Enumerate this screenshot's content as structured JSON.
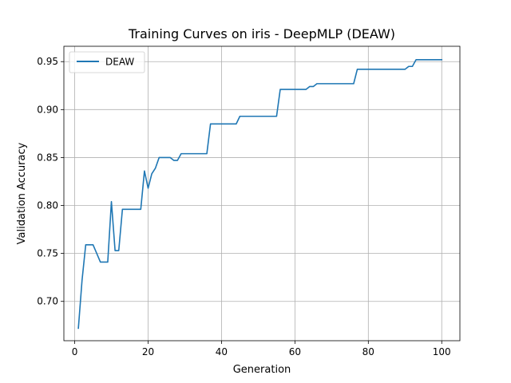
{
  "chart_data": {
    "type": "line",
    "title": "Training Curves on iris - DeepMLP (DEAW)",
    "xlabel": "Generation",
    "ylabel": "Validation Accuracy",
    "xlim": [
      -2.95,
      104.95
    ],
    "ylim": [
      0.659,
      0.966
    ],
    "xticks": [
      0,
      20,
      40,
      60,
      80,
      100
    ],
    "yticks": [
      0.7,
      0.75,
      0.8,
      0.85,
      0.9,
      0.95
    ],
    "xtick_labels": [
      "0",
      "20",
      "40",
      "60",
      "80",
      "100"
    ],
    "ytick_labels": [
      "0.70",
      "0.75",
      "0.80",
      "0.85",
      "0.90",
      "0.95"
    ],
    "grid": true,
    "legend_position": "upper-left",
    "colors": {
      "series": "#1f77b4"
    },
    "series": [
      {
        "name": "DEAW",
        "x": [
          1,
          2,
          3,
          4,
          5,
          6,
          7,
          8,
          9,
          10,
          11,
          12,
          13,
          14,
          15,
          16,
          17,
          18,
          19,
          20,
          21,
          22,
          23,
          24,
          25,
          26,
          27,
          28,
          29,
          30,
          31,
          32,
          33,
          34,
          35,
          36,
          37,
          38,
          39,
          40,
          41,
          42,
          43,
          44,
          45,
          46,
          47,
          48,
          49,
          50,
          51,
          52,
          53,
          54,
          55,
          56,
          57,
          58,
          59,
          60,
          61,
          62,
          63,
          64,
          65,
          66,
          67,
          68,
          69,
          70,
          71,
          72,
          73,
          74,
          75,
          76,
          77,
          78,
          79,
          80,
          81,
          82,
          83,
          84,
          85,
          86,
          87,
          88,
          89,
          90,
          91,
          92,
          93,
          94,
          95,
          96,
          97,
          98,
          99,
          100
        ],
        "values": [
          0.672,
          0.722,
          0.759,
          0.759,
          0.759,
          0.75,
          0.741,
          0.741,
          0.741,
          0.804,
          0.753,
          0.753,
          0.796,
          0.796,
          0.796,
          0.796,
          0.796,
          0.796,
          0.836,
          0.818,
          0.833,
          0.839,
          0.85,
          0.85,
          0.85,
          0.85,
          0.847,
          0.847,
          0.854,
          0.854,
          0.854,
          0.854,
          0.854,
          0.854,
          0.854,
          0.854,
          0.885,
          0.885,
          0.885,
          0.885,
          0.885,
          0.885,
          0.885,
          0.885,
          0.893,
          0.893,
          0.893,
          0.893,
          0.893,
          0.893,
          0.893,
          0.893,
          0.893,
          0.893,
          0.893,
          0.921,
          0.921,
          0.921,
          0.921,
          0.921,
          0.921,
          0.921,
          0.921,
          0.924,
          0.924,
          0.927,
          0.927,
          0.927,
          0.927,
          0.927,
          0.927,
          0.927,
          0.927,
          0.927,
          0.927,
          0.927,
          0.942,
          0.942,
          0.942,
          0.942,
          0.942,
          0.942,
          0.942,
          0.942,
          0.942,
          0.942,
          0.942,
          0.942,
          0.942,
          0.942,
          0.945,
          0.945,
          0.952,
          0.952,
          0.952,
          0.952,
          0.952,
          0.952,
          0.952,
          0.952
        ]
      }
    ]
  }
}
